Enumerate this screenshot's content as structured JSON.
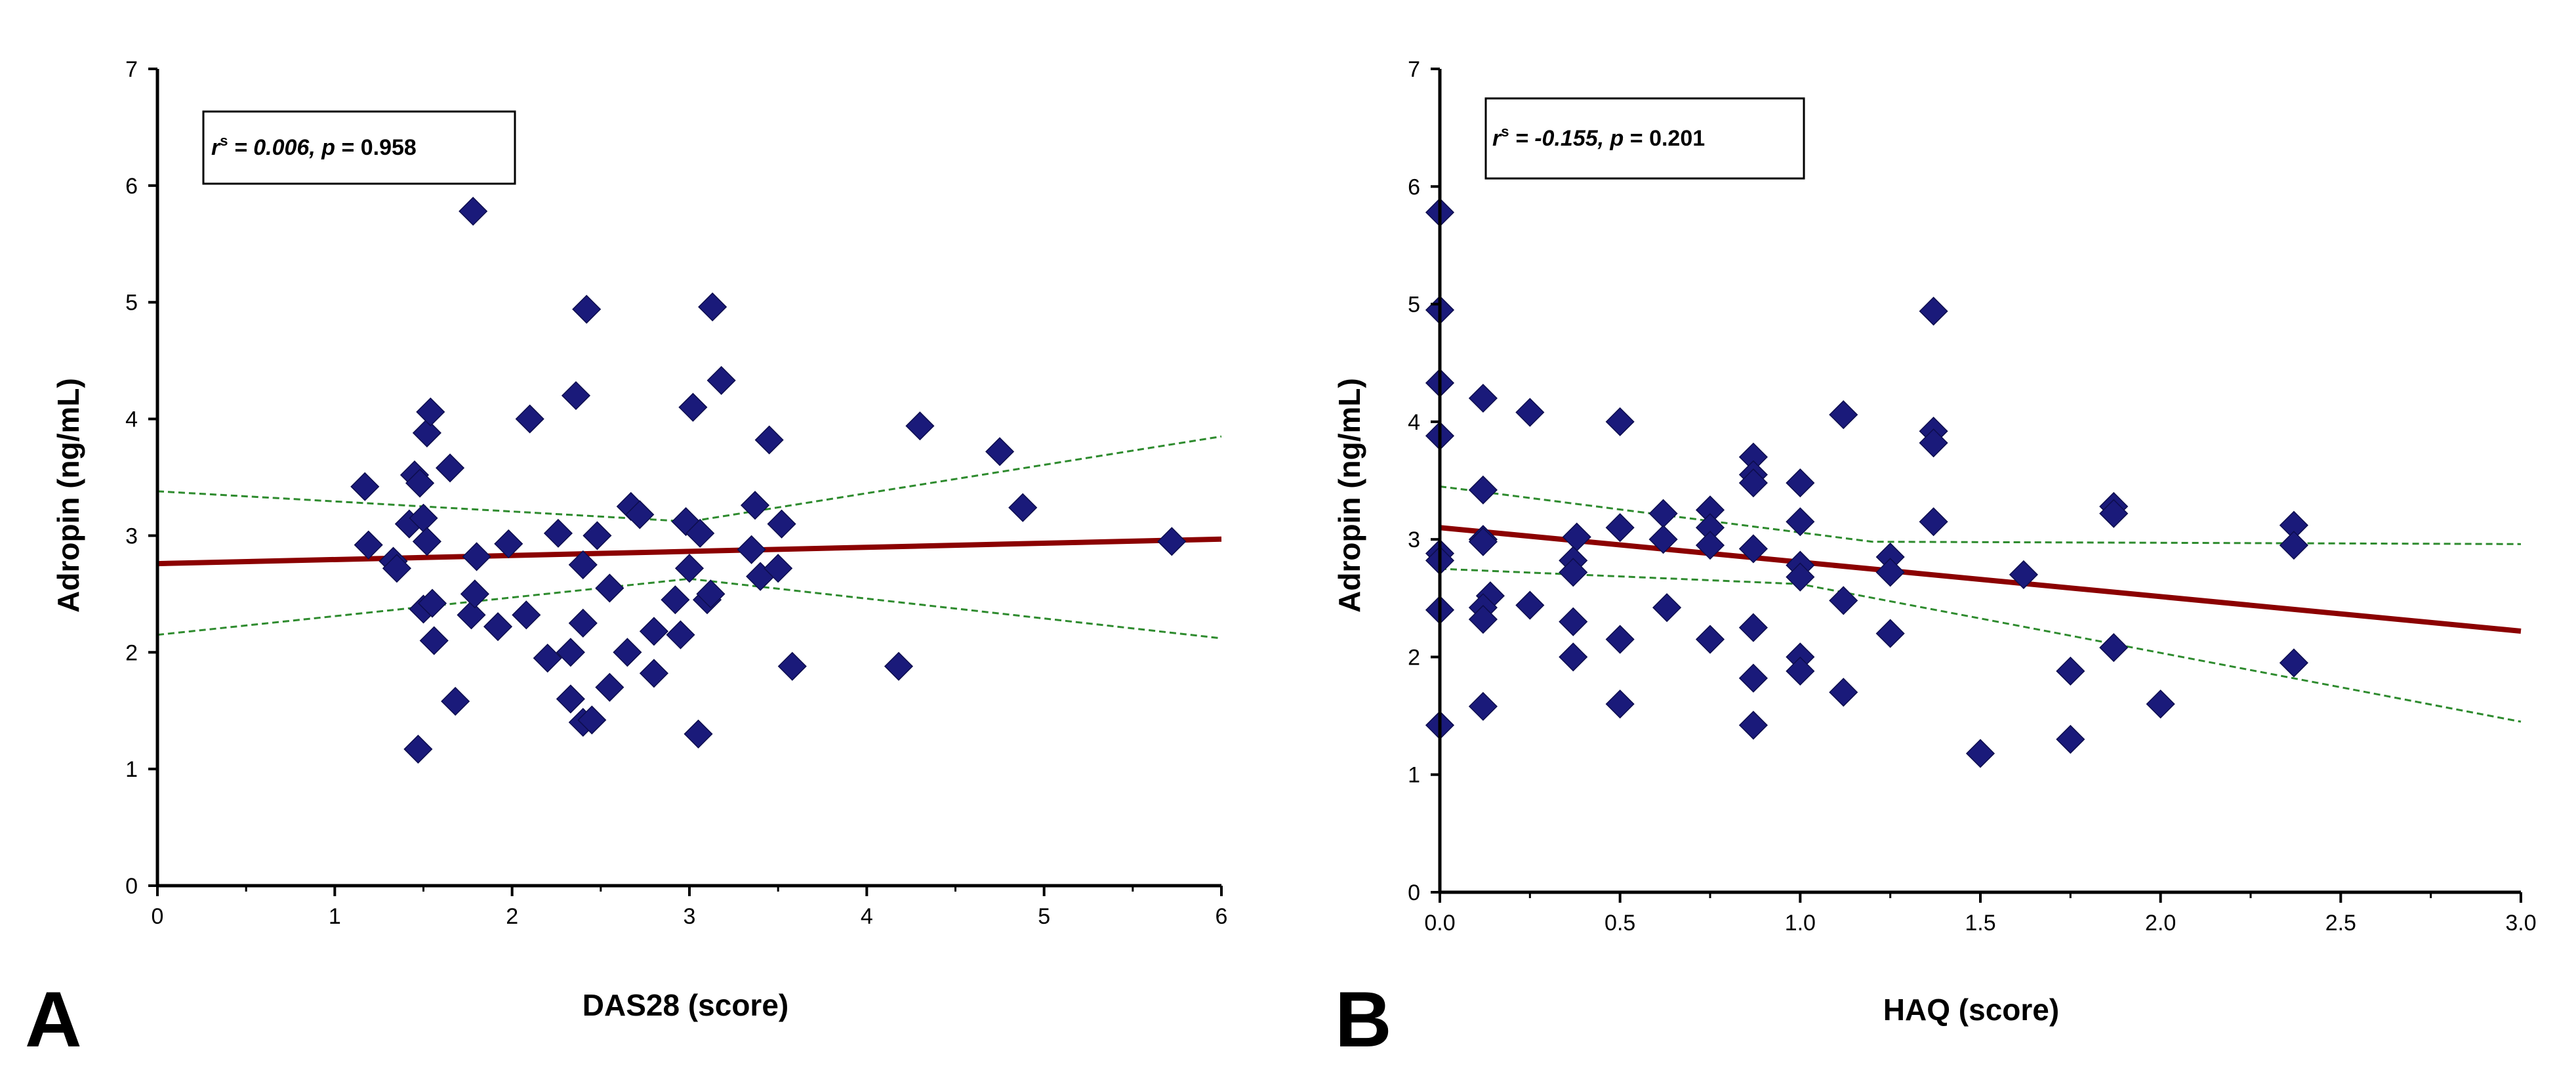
{
  "colors": {
    "point": "#1a1a7a",
    "fit_line": "#8b0000",
    "ci_line": "#2e8b2e",
    "axis": "#000000"
  },
  "chart_data": [
    {
      "type": "scatter",
      "panel_label": "A",
      "xlabel": "DAS28 (score)",
      "ylabel": "Adropin (ng/mL)",
      "xlim": [
        0,
        6
      ],
      "ylim": [
        0,
        7
      ],
      "xticks": [
        "0",
        "1",
        "2",
        "3",
        "4",
        "5",
        "6"
      ],
      "yticks": [
        "0",
        "1",
        "2",
        "3",
        "4",
        "5",
        "6",
        "7"
      ],
      "stats": {
        "r_label": "r",
        "r_sup": "s",
        "r_value": " = 0.006,",
        "p_label": "p",
        "p_value": " = 0.958"
      },
      "fit_line": {
        "x": [
          0,
          6
        ],
        "y": [
          2.76,
          2.97
        ]
      },
      "ci_upper": {
        "x": [
          0,
          3.0,
          6
        ],
        "y": [
          3.38,
          3.12,
          3.85
        ]
      },
      "ci_lower": {
        "x": [
          0,
          3.0,
          6
        ],
        "y": [
          2.15,
          2.63,
          2.12
        ]
      },
      "points": [
        [
          1.17,
          3.42
        ],
        [
          1.19,
          2.92
        ],
        [
          1.33,
          2.78
        ],
        [
          1.35,
          2.72
        ],
        [
          1.42,
          3.1
        ],
        [
          1.45,
          3.52
        ],
        [
          1.48,
          3.45
        ],
        [
          1.5,
          3.15
        ],
        [
          1.52,
          3.88
        ],
        [
          1.54,
          4.06
        ],
        [
          1.52,
          2.95
        ],
        [
          1.5,
          2.37
        ],
        [
          1.55,
          2.42
        ],
        [
          1.56,
          2.1
        ],
        [
          1.47,
          1.17
        ],
        [
          1.65,
          3.58
        ],
        [
          1.68,
          1.58
        ],
        [
          1.77,
          2.32
        ],
        [
          1.79,
          2.5
        ],
        [
          1.8,
          2.82
        ],
        [
          1.78,
          5.78
        ],
        [
          1.92,
          2.22
        ],
        [
          1.98,
          2.93
        ],
        [
          2.08,
          2.32
        ],
        [
          2.1,
          4.0
        ],
        [
          2.2,
          1.95
        ],
        [
          2.26,
          3.02
        ],
        [
          2.33,
          2.0
        ],
        [
          2.33,
          1.6
        ],
        [
          2.36,
          4.2
        ],
        [
          2.4,
          2.75
        ],
        [
          2.4,
          2.25
        ],
        [
          2.42,
          4.94
        ],
        [
          2.4,
          1.4
        ],
        [
          2.45,
          1.42
        ],
        [
          2.48,
          3.0
        ],
        [
          2.55,
          2.55
        ],
        [
          2.55,
          1.7
        ],
        [
          2.65,
          2.0
        ],
        [
          2.67,
          3.25
        ],
        [
          2.72,
          3.18
        ],
        [
          2.8,
          2.18
        ],
        [
          2.8,
          1.82
        ],
        [
          2.92,
          2.45
        ],
        [
          2.95,
          2.15
        ],
        [
          2.98,
          3.12
        ],
        [
          3.0,
          2.72
        ],
        [
          3.02,
          4.1
        ],
        [
          3.06,
          3.02
        ],
        [
          3.05,
          1.3
        ],
        [
          3.1,
          2.45
        ],
        [
          3.12,
          2.5
        ],
        [
          3.13,
          4.96
        ],
        [
          3.18,
          4.33
        ],
        [
          3.35,
          2.88
        ],
        [
          3.37,
          3.26
        ],
        [
          3.4,
          2.65
        ],
        [
          3.45,
          3.82
        ],
        [
          3.5,
          2.72
        ],
        [
          3.52,
          3.1
        ],
        [
          3.58,
          1.88
        ],
        [
          4.18,
          1.88
        ],
        [
          4.3,
          3.94
        ],
        [
          4.75,
          3.72
        ],
        [
          4.88,
          3.24
        ],
        [
          5.72,
          2.95
        ]
      ]
    },
    {
      "type": "scatter",
      "panel_label": "B",
      "xlabel": "HAQ (score)",
      "ylabel": "Adropin (ng/mL)",
      "xlim": [
        0,
        3.0
      ],
      "ylim": [
        0,
        7
      ],
      "xticks": [
        "0.0",
        "0.5",
        "1.0",
        "1.5",
        "2.0",
        "2.5",
        "3.0"
      ],
      "yticks": [
        "0",
        "1",
        "2",
        "3",
        "4",
        "5",
        "6",
        "7"
      ],
      "stats": {
        "r_label": "r",
        "r_sup": "s",
        "r_value": " = -0.155,",
        "p_label": "p",
        "p_value": " = 0.201"
      },
      "fit_line": {
        "x": [
          0,
          3.0
        ],
        "y": [
          3.1,
          2.22
        ]
      },
      "ci_upper": {
        "x": [
          0,
          1.2,
          3.0
        ],
        "y": [
          3.45,
          2.98,
          2.96
        ]
      },
      "ci_lower": {
        "x": [
          0,
          1.0,
          3.0
        ],
        "y": [
          2.75,
          2.62,
          1.45
        ]
      },
      "points": [
        [
          0.0,
          5.78
        ],
        [
          0.0,
          4.95
        ],
        [
          0.0,
          4.33
        ],
        [
          0.0,
          3.88
        ],
        [
          0.0,
          2.88
        ],
        [
          0.0,
          2.82
        ],
        [
          0.0,
          2.4
        ],
        [
          0.0,
          1.42
        ],
        [
          0.12,
          4.2
        ],
        [
          0.12,
          3.42
        ],
        [
          0.12,
          3.0
        ],
        [
          0.12,
          2.98
        ],
        [
          0.14,
          2.52
        ],
        [
          0.12,
          2.42
        ],
        [
          0.12,
          2.32
        ],
        [
          0.12,
          1.58
        ],
        [
          0.25,
          4.08
        ],
        [
          0.25,
          2.44
        ],
        [
          0.38,
          3.02
        ],
        [
          0.37,
          2.82
        ],
        [
          0.37,
          2.72
        ],
        [
          0.37,
          2.3
        ],
        [
          0.37,
          2.0
        ],
        [
          0.5,
          4.0
        ],
        [
          0.5,
          3.1
        ],
        [
          0.5,
          2.15
        ],
        [
          0.5,
          1.6
        ],
        [
          0.62,
          3.22
        ],
        [
          0.62,
          3.0
        ],
        [
          0.63,
          2.42
        ],
        [
          0.75,
          3.25
        ],
        [
          0.75,
          3.1
        ],
        [
          0.75,
          2.95
        ],
        [
          0.75,
          2.15
        ],
        [
          0.87,
          3.7
        ],
        [
          0.87,
          3.55
        ],
        [
          0.87,
          3.48
        ],
        [
          0.87,
          2.92
        ],
        [
          0.87,
          2.25
        ],
        [
          0.87,
          1.82
        ],
        [
          0.87,
          1.42
        ],
        [
          1.0,
          3.48
        ],
        [
          1.0,
          3.15
        ],
        [
          1.0,
          2.78
        ],
        [
          1.0,
          2.68
        ],
        [
          1.0,
          2.0
        ],
        [
          1.0,
          1.88
        ],
        [
          1.12,
          4.06
        ],
        [
          1.12,
          2.48
        ],
        [
          1.12,
          1.7
        ],
        [
          1.25,
          2.85
        ],
        [
          1.25,
          2.72
        ],
        [
          1.25,
          2.2
        ],
        [
          1.37,
          4.94
        ],
        [
          1.37,
          3.92
        ],
        [
          1.37,
          3.82
        ],
        [
          1.37,
          3.15
        ],
        [
          1.5,
          1.18
        ],
        [
          1.62,
          2.7
        ],
        [
          1.75,
          1.88
        ],
        [
          1.75,
          1.3
        ],
        [
          1.87,
          3.28
        ],
        [
          1.87,
          3.22
        ],
        [
          1.87,
          2.08
        ],
        [
          2.0,
          1.6
        ],
        [
          2.37,
          3.12
        ],
        [
          2.37,
          2.95
        ],
        [
          2.37,
          1.95
        ]
      ]
    }
  ]
}
